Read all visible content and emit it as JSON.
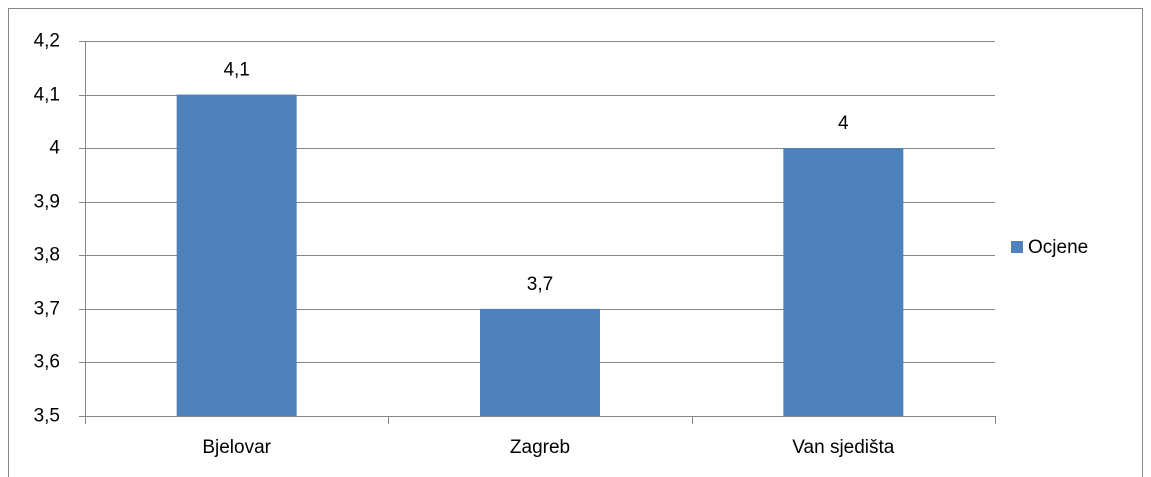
{
  "chart_data": {
    "type": "bar",
    "categories": [
      "Bjelovar",
      "Zagreb",
      "Van sjedišta"
    ],
    "series": [
      {
        "name": "Ocjene",
        "color": "#4f81bd",
        "values": [
          4.1,
          3.7,
          4
        ],
        "value_labels": [
          "4,1",
          "3,7",
          "4"
        ]
      }
    ],
    "ylim": [
      3.5,
      4.2
    ],
    "yticks": [
      {
        "value": 3.5,
        "label": "3,5"
      },
      {
        "value": 3.6,
        "label": "3,6"
      },
      {
        "value": 3.7,
        "label": "3,7"
      },
      {
        "value": 3.8,
        "label": "3,8"
      },
      {
        "value": 3.9,
        "label": "3,9"
      },
      4,
      {
        "value": 4.1,
        "label": "4,1"
      },
      {
        "value": 4.2,
        "label": "4,2"
      }
    ],
    "grid": true,
    "legend": "right"
  }
}
